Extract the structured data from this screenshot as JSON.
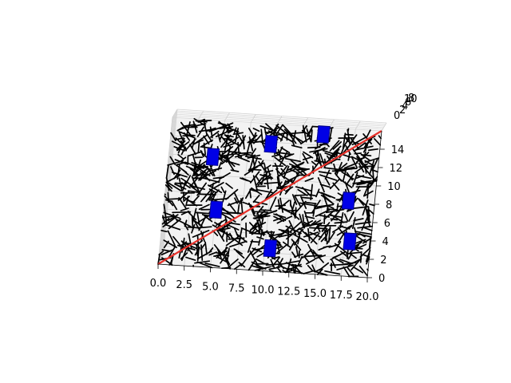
{
  "chart_data": {
    "type": "line3d",
    "title": "",
    "xlabel": "",
    "ylabel": "",
    "zlabel": "",
    "xlim": [
      0,
      20
    ],
    "ylim": [
      0,
      16
    ],
    "zlim": [
      0,
      10
    ],
    "grid": true,
    "x_ticks": [
      "0.0",
      "2.5",
      "5.0",
      "7.5",
      "10.0",
      "12.5",
      "15.0",
      "17.5",
      "20.0"
    ],
    "y_ticks": [
      "0",
      "2",
      "4",
      "6",
      "8",
      "10",
      "12",
      "14"
    ],
    "z_ticks": [
      "0",
      "2",
      "4",
      "6",
      "8",
      "10"
    ],
    "series": [
      {
        "kind": "random-edge-network",
        "color": "#000000",
        "approx_segment_count": 900
      },
      {
        "kind": "straight-path",
        "color": "#e8312a",
        "start": [
          0,
          0,
          0
        ],
        "end": [
          20,
          16,
          0
        ]
      }
    ],
    "obstacles": [
      {
        "color": "#0000e6",
        "center": [
          4.2,
          12.0
        ]
      },
      {
        "color": "#0000e6",
        "center": [
          9.6,
          13.8
        ]
      },
      {
        "color": "#0000e6",
        "center": [
          14.5,
          15.2
        ]
      },
      {
        "color": "#0000e6",
        "center": [
          5.0,
          6.3
        ]
      },
      {
        "color": "#0000e6",
        "center": [
          17.5,
          8.2
        ]
      },
      {
        "color": "#0000e6",
        "center": [
          10.5,
          2.5
        ]
      },
      {
        "color": "#0000e6",
        "center": [
          18.0,
          3.8
        ]
      }
    ]
  }
}
